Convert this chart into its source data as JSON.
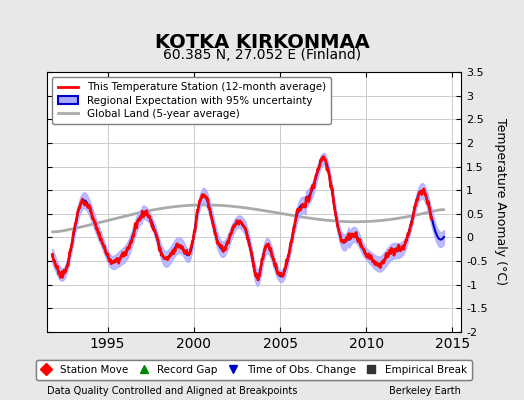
{
  "title": "KOTKA KIRKONMAA",
  "subtitle": "60.385 N, 27.052 E (Finland)",
  "ylabel": "Temperature Anomaly (°C)",
  "footnote_left": "Data Quality Controlled and Aligned at Breakpoints",
  "footnote_right": "Berkeley Earth",
  "xlim": [
    1991.5,
    2015.5
  ],
  "ylim": [
    -2.0,
    3.5
  ],
  "yticks": [
    -2,
    -1.5,
    -1,
    -0.5,
    0,
    0.5,
    1,
    1.5,
    2,
    2.5,
    3,
    3.5
  ],
  "xticks": [
    1995,
    2000,
    2005,
    2010,
    2015
  ],
  "background_color": "#e8e8e8",
  "plot_bg_color": "#ffffff",
  "grid_color": "#cccccc",
  "station_color": "#ff0000",
  "regional_color": "#0000cc",
  "regional_fill_color": "#aaaaff",
  "global_color": "#aaaaaa",
  "legend_entries": [
    "This Temperature Station (12-month average)",
    "Regional Expectation with 95% uncertainty",
    "Global Land (5-year average)"
  ],
  "marker_legend": [
    {
      "label": "Station Move",
      "color": "#ff0000",
      "marker": "D"
    },
    {
      "label": "Record Gap",
      "color": "#008800",
      "marker": "^"
    },
    {
      "label": "Time of Obs. Change",
      "color": "#0000cc",
      "marker": "v"
    },
    {
      "label": "Empirical Break",
      "color": "#333333",
      "marker": "s"
    }
  ]
}
